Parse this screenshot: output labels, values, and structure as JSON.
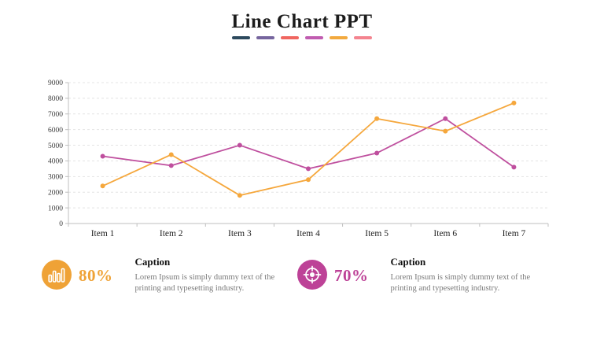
{
  "header": {
    "title": "Line Chart PPT",
    "accent_dash_colors": [
      "#2d4a5e",
      "#76659e",
      "#f06660",
      "#c05cb0",
      "#f2a93e",
      "#f4848f"
    ]
  },
  "chart_data": {
    "type": "line",
    "title": "",
    "xlabel": "",
    "ylabel": "",
    "categories": [
      "Item 1",
      "Item 2",
      "Item 3",
      "Item 4",
      "Item 5",
      "Item 6",
      "Item 7"
    ],
    "series": [
      {
        "name": "purple-series",
        "color": "#bf4f9e",
        "values": [
          4300,
          3700,
          5000,
          3500,
          4500,
          6700,
          3600
        ]
      },
      {
        "name": "orange-series",
        "color": "#f5a73c",
        "values": [
          2400,
          4400,
          1800,
          2800,
          6700,
          5900,
          7700
        ]
      }
    ],
    "ylim": [
      0,
      9000
    ],
    "yticks": [
      0,
      1000,
      2000,
      3000,
      4000,
      5000,
      6000,
      7000,
      8000,
      9000
    ],
    "grid": true,
    "grid_style": "dashed",
    "legend": "none"
  },
  "captions": [
    {
      "icon": "bar-chart-icon",
      "accent_color": "#efa236",
      "percent": "80%",
      "heading": "Caption",
      "body": "Lorem Ipsum is simply dummy text of the printing and typesetting industry."
    },
    {
      "icon": "target-icon",
      "accent_color": "#bd4297",
      "percent": "70%",
      "heading": "Caption",
      "body": "Lorem Ipsum is simply dummy text of the printing and typesetting industry."
    }
  ]
}
